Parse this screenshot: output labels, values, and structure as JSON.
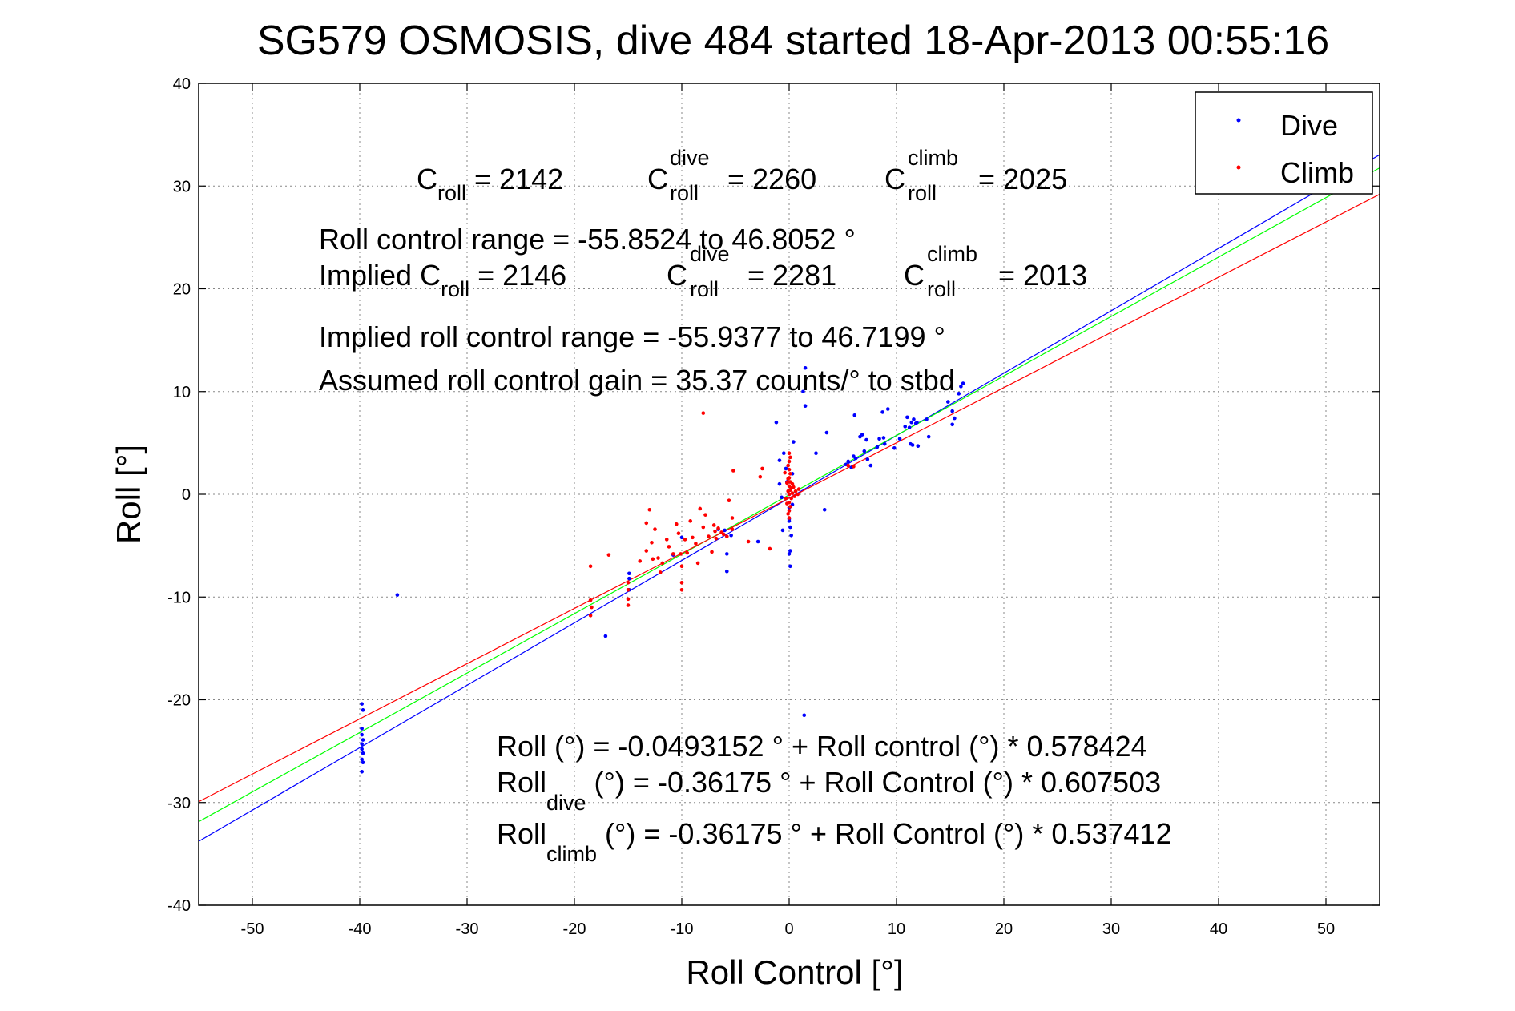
{
  "chart_data": {
    "type": "scatter",
    "title": "SG579 OSMOSIS, dive 484 started 18-Apr-2013 00:55:16",
    "xlabel": "Roll Control [°]",
    "ylabel": "Roll [°]",
    "xlim": [
      -55,
      55
    ],
    "ylim": [
      -40,
      40
    ],
    "grid": true,
    "legend_position": "top-right",
    "xticks": [
      -50,
      -40,
      -30,
      -20,
      -10,
      0,
      10,
      20,
      30,
      40,
      50
    ],
    "yticks": [
      -40,
      -30,
      -20,
      -10,
      0,
      10,
      20,
      30,
      40
    ],
    "xtick_labels": [
      "-50",
      "-40",
      "-30",
      "-20",
      "-10",
      "0",
      "10",
      "20",
      "30",
      "40",
      "50"
    ],
    "ytick_labels": [
      "-40",
      "-30",
      "-20",
      "-10",
      "0",
      "10",
      "20",
      "30",
      "40"
    ],
    "series": [
      {
        "name": "Dive",
        "color": "#0000ff",
        "marker": "dot",
        "points": [
          [
            -39.8,
            -20.4
          ],
          [
            -39.7,
            -21.0
          ],
          [
            -39.8,
            -22.8
          ],
          [
            -39.8,
            -23.4
          ],
          [
            -39.7,
            -23.9
          ],
          [
            -39.8,
            -24.3
          ],
          [
            -39.8,
            -24.8
          ],
          [
            -39.7,
            -25.2
          ],
          [
            -39.8,
            -25.8
          ],
          [
            -39.7,
            -26.1
          ],
          [
            -39.8,
            -27.0
          ],
          [
            -36.5,
            -9.8
          ],
          [
            -17.1,
            -13.8
          ],
          [
            -14.9,
            -8.2
          ],
          [
            -14.9,
            -9.3
          ],
          [
            -14.9,
            -7.7
          ],
          [
            -10.8,
            -5.9
          ],
          [
            -10.0,
            -4.2
          ],
          [
            -6.6,
            -3.4
          ],
          [
            -6.0,
            -3.5
          ],
          [
            -5.4,
            -4.0
          ],
          [
            -5.8,
            -7.5
          ],
          [
            -5.8,
            -5.8
          ],
          [
            -2.9,
            -4.6
          ],
          [
            -1.2,
            7.0
          ],
          [
            -0.9,
            3.3
          ],
          [
            -0.9,
            1.0
          ],
          [
            -0.7,
            -0.3
          ],
          [
            -0.6,
            -3.5
          ],
          [
            -0.5,
            4.0
          ],
          [
            -0.3,
            2.5
          ],
          [
            -0.2,
            1.2
          ],
          [
            0.0,
            0.0
          ],
          [
            0.0,
            -1.3
          ],
          [
            0.0,
            -2.4
          ],
          [
            0.1,
            -3.2
          ],
          [
            0.1,
            -5.5
          ],
          [
            0.1,
            -7.0
          ],
          [
            0.3,
            2.0
          ],
          [
            0.3,
            -1.0
          ],
          [
            0.2,
            -4.0
          ],
          [
            0.0,
            -2.6
          ],
          [
            0.4,
            5.1
          ],
          [
            0.0,
            -5.8
          ],
          [
            1.5,
            8.6
          ],
          [
            1.3,
            10.0
          ],
          [
            1.5,
            12.3
          ],
          [
            1.4,
            -21.5
          ],
          [
            2.5,
            4.0
          ],
          [
            3.5,
            6.0
          ],
          [
            3.3,
            -1.5
          ],
          [
            5.3,
            2.9
          ],
          [
            5.5,
            3.2
          ],
          [
            6.0,
            3.7
          ],
          [
            5.8,
            2.6
          ],
          [
            6.1,
            7.7
          ],
          [
            6.2,
            3.5
          ],
          [
            6.6,
            5.6
          ],
          [
            6.8,
            5.8
          ],
          [
            7.2,
            5.3
          ],
          [
            7.0,
            4.2
          ],
          [
            7.3,
            3.4
          ],
          [
            7.6,
            2.8
          ],
          [
            8.2,
            4.6
          ],
          [
            8.4,
            5.4
          ],
          [
            8.9,
            4.9
          ],
          [
            8.8,
            5.5
          ],
          [
            8.7,
            8.0
          ],
          [
            9.2,
            8.3
          ],
          [
            9.8,
            4.5
          ],
          [
            10.3,
            5.4
          ],
          [
            10.8,
            6.6
          ],
          [
            11.0,
            7.5
          ],
          [
            11.2,
            6.5
          ],
          [
            11.4,
            7.0
          ],
          [
            11.6,
            7.3
          ],
          [
            11.8,
            6.9
          ],
          [
            11.3,
            4.9
          ],
          [
            11.5,
            4.8
          ],
          [
            12.0,
            4.7
          ],
          [
            12.8,
            7.3
          ],
          [
            13.0,
            5.6
          ],
          [
            14.8,
            9.0
          ],
          [
            15.2,
            8.1
          ],
          [
            15.4,
            7.4
          ],
          [
            15.2,
            6.8
          ],
          [
            15.8,
            9.8
          ],
          [
            16.0,
            10.5
          ],
          [
            16.2,
            10.8
          ],
          [
            11.9,
            7.0
          ]
        ]
      },
      {
        "name": "Climb",
        "color": "#ff0000",
        "marker": "dot",
        "points": [
          [
            -18.5,
            -7.0
          ],
          [
            -18.5,
            -10.3
          ],
          [
            -18.4,
            -11.0
          ],
          [
            -18.5,
            -11.8
          ],
          [
            -16.8,
            -5.9
          ],
          [
            -15.0,
            -8.6
          ],
          [
            -15.0,
            -9.3
          ],
          [
            -15.0,
            -10.2
          ],
          [
            -15.0,
            -10.8
          ],
          [
            -13.9,
            -6.5
          ],
          [
            -13.3,
            -5.5
          ],
          [
            -13.3,
            -2.8
          ],
          [
            -13.0,
            -1.5
          ],
          [
            -12.8,
            -4.7
          ],
          [
            -12.7,
            -6.3
          ],
          [
            -12.5,
            -3.4
          ],
          [
            -12.2,
            -6.2
          ],
          [
            -12.0,
            -7.6
          ],
          [
            -11.8,
            -6.7
          ],
          [
            -11.4,
            -4.4
          ],
          [
            -11.2,
            -5.1
          ],
          [
            -10.8,
            -5.8
          ],
          [
            -10.5,
            -2.9
          ],
          [
            -10.3,
            -3.8
          ],
          [
            -10.1,
            -5.8
          ],
          [
            -10.0,
            -7.0
          ],
          [
            -10.0,
            -8.6
          ],
          [
            -10.0,
            -9.3
          ],
          [
            -9.7,
            -4.4
          ],
          [
            -9.5,
            -5.7
          ],
          [
            -9.2,
            -2.6
          ],
          [
            -9.0,
            -4.2
          ],
          [
            -8.7,
            -4.8
          ],
          [
            -8.5,
            -6.7
          ],
          [
            -8.3,
            -1.4
          ],
          [
            -8.0,
            -3.2
          ],
          [
            -8.0,
            7.9
          ],
          [
            -7.8,
            -2.0
          ],
          [
            -7.5,
            -4.1
          ],
          [
            -7.2,
            -5.6
          ],
          [
            -7.0,
            -3.0
          ],
          [
            -6.9,
            -3.6
          ],
          [
            -6.8,
            -4.3
          ],
          [
            -6.6,
            -3.3
          ],
          [
            -6.3,
            -3.7
          ],
          [
            -6.1,
            -3.9
          ],
          [
            -5.8,
            -4.1
          ],
          [
            -5.6,
            -0.6
          ],
          [
            -5.3,
            -2.3
          ],
          [
            -5.2,
            2.3
          ],
          [
            -5.3,
            -3.4
          ],
          [
            -3.8,
            -4.6
          ],
          [
            -2.7,
            1.7
          ],
          [
            -2.5,
            2.5
          ],
          [
            -1.8,
            -5.3
          ],
          [
            -0.4,
            2.1
          ],
          [
            -0.3,
            -0.4
          ],
          [
            0.0,
            4.0
          ],
          [
            0.0,
            3.2
          ],
          [
            0.0,
            2.4
          ],
          [
            0.0,
            1.6
          ],
          [
            0.0,
            0.8
          ],
          [
            0.0,
            0.0
          ],
          [
            0.0,
            -0.8
          ],
          [
            0.0,
            -1.6
          ],
          [
            0.0,
            -2.3
          ],
          [
            0.1,
            3.6
          ],
          [
            0.1,
            2.0
          ],
          [
            0.1,
            1.2
          ],
          [
            0.1,
            0.4
          ],
          [
            0.1,
            -1.2
          ],
          [
            0.2,
            0.6
          ],
          [
            0.2,
            -0.4
          ],
          [
            0.3,
            1.0
          ],
          [
            0.3,
            0.1
          ],
          [
            0.4,
            0.7
          ],
          [
            0.5,
            -0.2
          ],
          [
            0.6,
            0.3
          ],
          [
            0.8,
            0.0
          ],
          [
            0.9,
            0.5
          ],
          [
            -0.1,
            2.8
          ],
          [
            -0.1,
            1.5
          ],
          [
            -0.1,
            0.3
          ],
          [
            -0.1,
            -1.9
          ],
          [
            -0.2,
            1.1
          ],
          [
            -0.2,
            -0.9
          ],
          [
            5.5,
            2.8
          ],
          [
            6.0,
            2.7
          ]
        ]
      }
    ],
    "fit_lines": [
      {
        "name": "Dive fit",
        "color": "#0000ff",
        "intercept": -0.36175,
        "slope": 0.607503
      },
      {
        "name": "Overall fit",
        "color": "#00ff00",
        "intercept": -0.0493152,
        "slope": 0.578424
      },
      {
        "name": "Climb fit",
        "color": "#ff0000",
        "intercept": -0.36175,
        "slope": 0.537412
      }
    ],
    "annotations": {
      "c_roll": {
        "base": "C",
        "sub": "roll",
        "value": " = 2142"
      },
      "c_roll_dive": {
        "base": "C",
        "sub": "roll",
        "sup": "dive",
        "value": " = 2260"
      },
      "c_roll_climb": {
        "base": "C",
        "sub": "roll",
        "sup": "climb",
        "value": " = 2025"
      },
      "roll_control_range": "Roll control range = -55.8524 to 46.8052 °",
      "implied_prefix": "Implied ",
      "implied_c_roll": {
        "base": "C",
        "sub": "roll",
        "value": " = 2146"
      },
      "implied_c_roll_dive": {
        "base": "C",
        "sub": "roll",
        "sup": "dive",
        "value": " = 2281"
      },
      "implied_c_roll_climb": {
        "base": "C",
        "sub": "roll",
        "sup": "climb",
        "value": " = 2013"
      },
      "implied_range": "Implied roll control range = -55.9377 to 46.7199 °",
      "gain": "Assumed roll control gain = 35.37 counts/° to stbd",
      "fit_overall": "Roll (°) = -0.0493152 ° + Roll control (°) * 0.578424",
      "fit_dive": {
        "base": "Roll",
        "sub": "dive",
        "rest": " (°) = -0.36175 ° + Roll Control (°) * 0.607503"
      },
      "fit_climb": {
        "base": "Roll",
        "sub": "climb",
        "rest": " (°) = -0.36175 ° + Roll Control (°) * 0.537412"
      }
    }
  }
}
